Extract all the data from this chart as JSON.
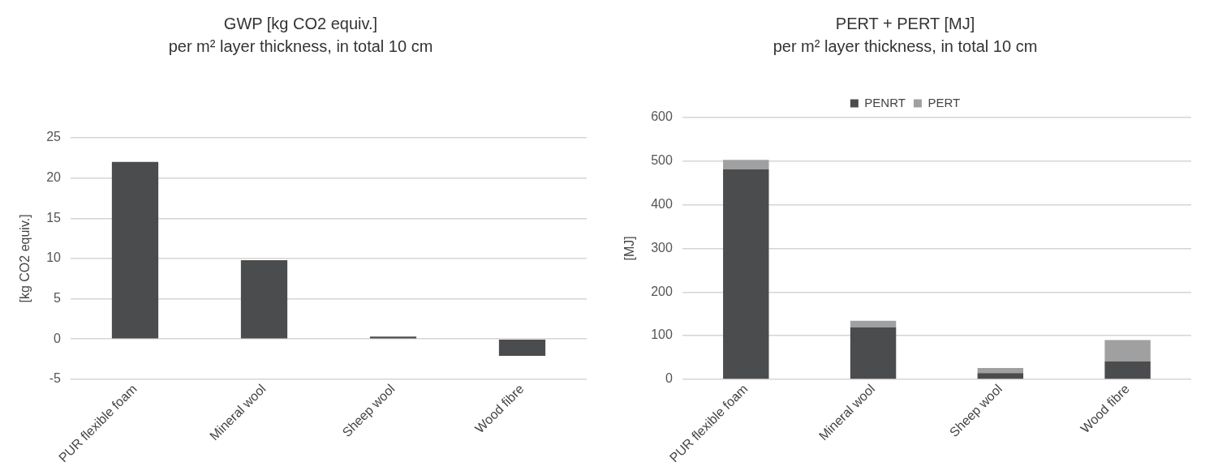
{
  "chart_data": [
    {
      "type": "bar",
      "title": "GWP [kg CO2 equiv.]",
      "subtitle": "per m² layer thickness, in total 10 cm",
      "ylabel": "[kg CO2 equiv.]",
      "categories": [
        "PUR flexible foam",
        "Mineral wool",
        "Sheep wool",
        "Wood fibre"
      ],
      "values": [
        22,
        9.8,
        0.3,
        -2.1
      ],
      "color": "#4a4c4e",
      "ylim": [
        -5,
        25
      ],
      "yticks": [
        -5,
        0,
        5,
        10,
        15,
        20,
        25
      ],
      "grid": "y",
      "legend": false
    },
    {
      "type": "bar",
      "title": "PERT + PERT [MJ]",
      "subtitle": "per m² layer thickness, in total 10 cm",
      "ylabel": "[MJ]",
      "categories": [
        "PUR flexible foam",
        "Mineral wool",
        "Sheep wool",
        "Wood fibre"
      ],
      "stacked": true,
      "series": [
        {
          "name": "PENRT",
          "color": "#4a4c4e",
          "values": [
            481,
            119,
            14,
            41
          ]
        },
        {
          "name": "PERT",
          "color": "#a0a0a0",
          "values": [
            22,
            15,
            12,
            49
          ]
        }
      ],
      "ylim": [
        0,
        600
      ],
      "yticks": [
        0,
        100,
        200,
        300,
        400,
        500,
        600
      ],
      "grid": "y",
      "legend": "top"
    }
  ]
}
